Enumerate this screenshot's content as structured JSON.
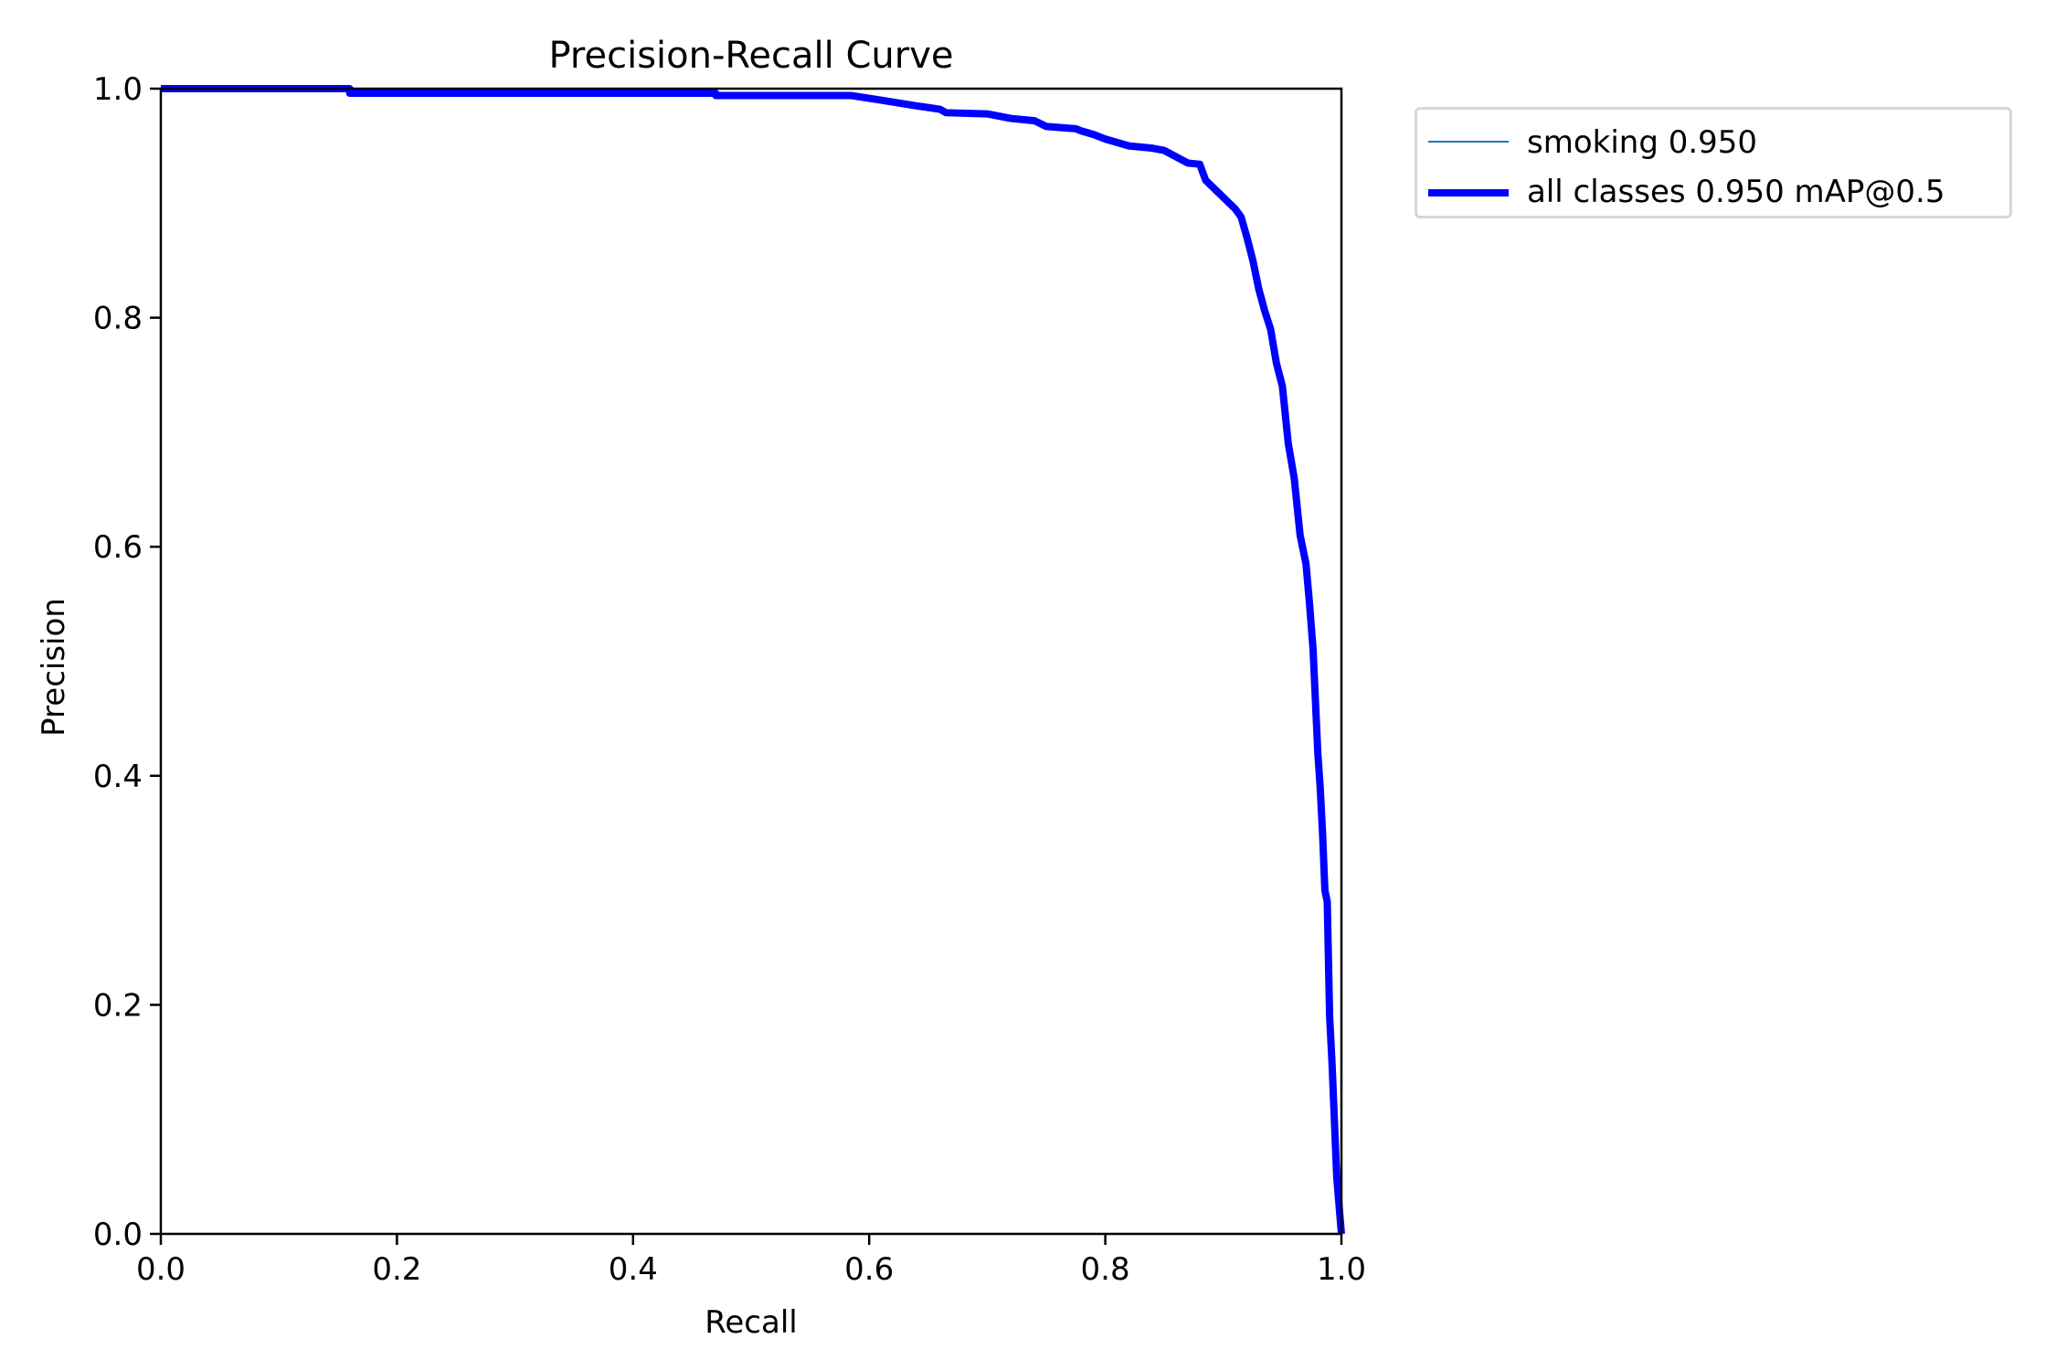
{
  "chart_data": {
    "type": "line",
    "title": "Precision-Recall Curve",
    "xlabel": "Recall",
    "ylabel": "Precision",
    "xlim": [
      0.0,
      1.0
    ],
    "ylim": [
      0.0,
      1.0
    ],
    "xticks": [
      "0.0",
      "0.2",
      "0.4",
      "0.6",
      "0.8",
      "1.0"
    ],
    "yticks": [
      "0.0",
      "0.2",
      "0.4",
      "0.6",
      "0.8",
      "1.0"
    ],
    "grid": false,
    "legend_position": "outside upper right",
    "series": [
      {
        "name": "smoking 0.950",
        "color": "#1f77b4",
        "linewidth": 1,
        "x": [
          0.0,
          0.16,
          0.16,
          0.47,
          0.47,
          0.585,
          0.61,
          0.64,
          0.66,
          0.665,
          0.7,
          0.72,
          0.74,
          0.75,
          0.775,
          0.78,
          0.79,
          0.8,
          0.81,
          0.82,
          0.83,
          0.84,
          0.85,
          0.87,
          0.88,
          0.885,
          0.89,
          0.9,
          0.91,
          0.915,
          0.92,
          0.925,
          0.93,
          0.935,
          0.94,
          0.945,
          0.95,
          0.955,
          0.96,
          0.965,
          0.97,
          0.973,
          0.976,
          0.98,
          0.982,
          0.984,
          0.986,
          0.988,
          0.99,
          0.992,
          0.994,
          0.996,
          1.0
        ],
        "y": [
          1.0,
          1.0,
          0.996,
          0.996,
          0.994,
          0.994,
          0.99,
          0.985,
          0.982,
          0.979,
          0.978,
          0.974,
          0.972,
          0.967,
          0.965,
          0.963,
          0.96,
          0.956,
          0.953,
          0.95,
          0.949,
          0.948,
          0.946,
          0.935,
          0.934,
          0.92,
          0.915,
          0.905,
          0.895,
          0.888,
          0.87,
          0.85,
          0.825,
          0.806,
          0.79,
          0.76,
          0.74,
          0.69,
          0.66,
          0.61,
          0.585,
          0.55,
          0.51,
          0.42,
          0.39,
          0.35,
          0.3,
          0.29,
          0.19,
          0.15,
          0.1,
          0.05,
          0.0
        ]
      },
      {
        "name": "all classes 0.950 mAP@0.5",
        "color": "#0000ff",
        "linewidth": 3,
        "x": [
          0.0,
          0.16,
          0.16,
          0.47,
          0.47,
          0.585,
          0.61,
          0.64,
          0.66,
          0.665,
          0.7,
          0.72,
          0.74,
          0.75,
          0.775,
          0.78,
          0.79,
          0.8,
          0.81,
          0.82,
          0.83,
          0.84,
          0.85,
          0.87,
          0.88,
          0.885,
          0.89,
          0.9,
          0.91,
          0.915,
          0.92,
          0.925,
          0.93,
          0.935,
          0.94,
          0.945,
          0.95,
          0.955,
          0.96,
          0.965,
          0.97,
          0.973,
          0.976,
          0.98,
          0.982,
          0.984,
          0.986,
          0.988,
          0.99,
          0.992,
          0.994,
          0.996,
          1.0
        ],
        "y": [
          1.0,
          1.0,
          0.996,
          0.996,
          0.994,
          0.994,
          0.99,
          0.985,
          0.982,
          0.979,
          0.978,
          0.974,
          0.972,
          0.967,
          0.965,
          0.963,
          0.96,
          0.956,
          0.953,
          0.95,
          0.949,
          0.948,
          0.946,
          0.935,
          0.934,
          0.92,
          0.915,
          0.905,
          0.895,
          0.888,
          0.87,
          0.85,
          0.825,
          0.806,
          0.79,
          0.76,
          0.74,
          0.69,
          0.66,
          0.61,
          0.585,
          0.55,
          0.51,
          0.42,
          0.39,
          0.35,
          0.3,
          0.29,
          0.19,
          0.15,
          0.1,
          0.05,
          0.0
        ]
      }
    ]
  },
  "legend": {
    "items": [
      {
        "label": "smoking 0.950",
        "color": "#1f77b4"
      },
      {
        "label": "all classes 0.950 mAP@0.5",
        "color": "#0000ff"
      }
    ]
  }
}
